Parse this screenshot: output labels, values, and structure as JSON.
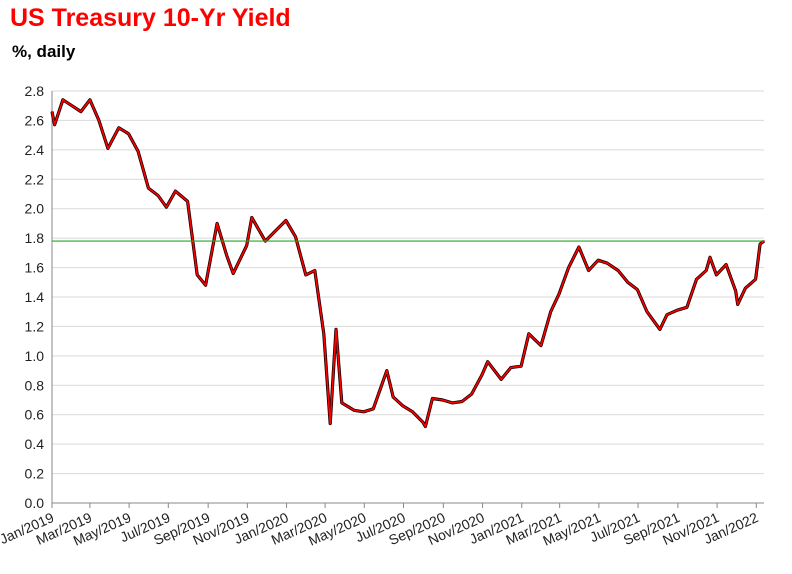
{
  "chart_data": {
    "type": "line",
    "title": "US Treasury  10-Yr Yield",
    "subtitle": "%, daily",
    "xlabel": "",
    "ylabel": "",
    "ylim": [
      0.0,
      2.8
    ],
    "y_ticks": [
      "0.0",
      "0.2",
      "0.4",
      "0.6",
      "0.8",
      "1.0",
      "1.2",
      "1.4",
      "1.6",
      "1.8",
      "2.0",
      "2.2",
      "2.4",
      "2.6",
      "2.8"
    ],
    "x_ticks": [
      "Jan/2019",
      "Mar/2019",
      "May/2019",
      "Jul/2019",
      "Sep/2019",
      "Nov/2019",
      "Jan/2020",
      "Mar/2020",
      "May/2020",
      "Jul/2020",
      "Sep/2020",
      "Nov/2020",
      "Jan/2021",
      "Mar/2021",
      "May/2021",
      "Jul/2021",
      "Sep/2021",
      "Nov/2021",
      "Jan/2022"
    ],
    "grid": "horizontal",
    "reference_line": {
      "value": 1.78,
      "color": "#22aa22"
    },
    "series": [
      {
        "color": "#ff0000",
        "points": [
          [
            "2019-01-01",
            2.66
          ],
          [
            "2019-01-05",
            2.57
          ],
          [
            "2019-01-18",
            2.74
          ],
          [
            "2019-02-01",
            2.7
          ],
          [
            "2019-02-15",
            2.66
          ],
          [
            "2019-03-01",
            2.74
          ],
          [
            "2019-03-15",
            2.6
          ],
          [
            "2019-03-29",
            2.41
          ],
          [
            "2019-04-15",
            2.55
          ],
          [
            "2019-04-30",
            2.51
          ],
          [
            "2019-05-15",
            2.39
          ],
          [
            "2019-05-31",
            2.14
          ],
          [
            "2019-06-15",
            2.09
          ],
          [
            "2019-06-28",
            2.01
          ],
          [
            "2019-07-12",
            2.12
          ],
          [
            "2019-07-31",
            2.05
          ],
          [
            "2019-08-15",
            1.55
          ],
          [
            "2019-08-28",
            1.48
          ],
          [
            "2019-09-15",
            1.9
          ],
          [
            "2019-09-30",
            1.68
          ],
          [
            "2019-10-10",
            1.56
          ],
          [
            "2019-10-31",
            1.75
          ],
          [
            "2019-11-08",
            1.94
          ],
          [
            "2019-11-29",
            1.78
          ],
          [
            "2019-12-15",
            1.85
          ],
          [
            "2019-12-31",
            1.92
          ],
          [
            "2020-01-15",
            1.81
          ],
          [
            "2020-01-31",
            1.55
          ],
          [
            "2020-02-14",
            1.58
          ],
          [
            "2020-02-28",
            1.15
          ],
          [
            "2020-03-09",
            0.54
          ],
          [
            "2020-03-18",
            1.18
          ],
          [
            "2020-03-27",
            0.68
          ],
          [
            "2020-04-15",
            0.63
          ],
          [
            "2020-04-30",
            0.62
          ],
          [
            "2020-05-15",
            0.64
          ],
          [
            "2020-06-05",
            0.9
          ],
          [
            "2020-06-15",
            0.72
          ],
          [
            "2020-06-30",
            0.66
          ],
          [
            "2020-07-15",
            0.62
          ],
          [
            "2020-07-31",
            0.55
          ],
          [
            "2020-08-04",
            0.52
          ],
          [
            "2020-08-15",
            0.71
          ],
          [
            "2020-08-31",
            0.7
          ],
          [
            "2020-09-15",
            0.68
          ],
          [
            "2020-09-30",
            0.69
          ],
          [
            "2020-10-15",
            0.74
          ],
          [
            "2020-10-31",
            0.87
          ],
          [
            "2020-11-09",
            0.96
          ],
          [
            "2020-11-30",
            0.84
          ],
          [
            "2020-12-15",
            0.92
          ],
          [
            "2020-12-31",
            0.93
          ],
          [
            "2021-01-12",
            1.15
          ],
          [
            "2021-01-31",
            1.07
          ],
          [
            "2021-02-15",
            1.3
          ],
          [
            "2021-02-28",
            1.42
          ],
          [
            "2021-03-15",
            1.6
          ],
          [
            "2021-03-31",
            1.74
          ],
          [
            "2021-04-15",
            1.58
          ],
          [
            "2021-04-30",
            1.65
          ],
          [
            "2021-05-14",
            1.63
          ],
          [
            "2021-05-31",
            1.58
          ],
          [
            "2021-06-15",
            1.5
          ],
          [
            "2021-06-30",
            1.45
          ],
          [
            "2021-07-15",
            1.3
          ],
          [
            "2021-08-04",
            1.18
          ],
          [
            "2021-08-15",
            1.28
          ],
          [
            "2021-08-31",
            1.31
          ],
          [
            "2021-09-15",
            1.33
          ],
          [
            "2021-09-30",
            1.52
          ],
          [
            "2021-10-15",
            1.58
          ],
          [
            "2021-10-21",
            1.67
          ],
          [
            "2021-10-31",
            1.55
          ],
          [
            "2021-11-15",
            1.62
          ],
          [
            "2021-11-30",
            1.44
          ],
          [
            "2021-12-03",
            1.35
          ],
          [
            "2021-12-15",
            1.46
          ],
          [
            "2021-12-31",
            1.52
          ],
          [
            "2022-01-07",
            1.76
          ],
          [
            "2022-01-13",
            1.78
          ]
        ]
      }
    ]
  }
}
